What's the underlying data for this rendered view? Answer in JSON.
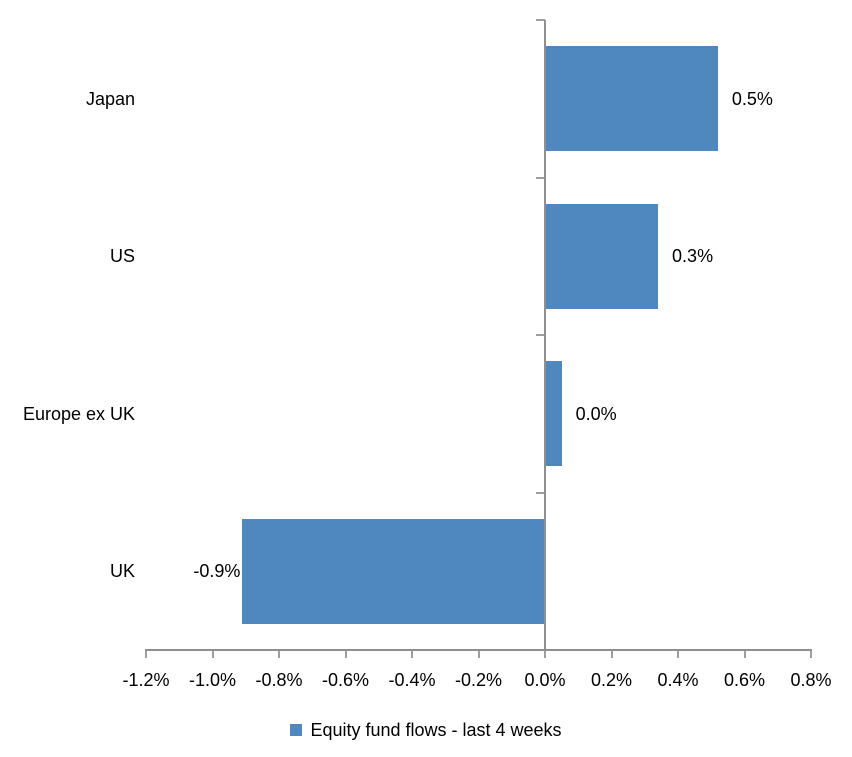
{
  "chart_data": {
    "type": "bar",
    "orientation": "horizontal",
    "title": "",
    "xlabel": "",
    "ylabel": "",
    "categories": [
      "Japan",
      "US",
      "Europe ex UK",
      "UK"
    ],
    "values": [
      0.5,
      0.3,
      0.0,
      -0.9
    ],
    "bar_values_precise": [
      0.52,
      0.34,
      0.05,
      -0.91
    ],
    "value_labels": [
      "0.5%",
      "0.3%",
      "0.0%",
      "-0.9%"
    ],
    "xlim": [
      -1.2,
      0.8
    ],
    "x_tick_step": 0.2,
    "x_tick_labels": [
      "-1.2%",
      "-1.0%",
      "-0.8%",
      "-0.6%",
      "-0.4%",
      "-0.2%",
      "0.0%",
      "0.2%",
      "0.4%",
      "0.6%",
      "0.8%"
    ],
    "grid": "off",
    "legend_position": "bottom-center",
    "legend": [
      {
        "label": "Equity fund flows - last 4 weeks",
        "swatch_color": "#4E88BE"
      }
    ],
    "bar_color": "#4E88BE",
    "axis_color": "#8F8F8F",
    "tick_color": "#9E9E9E",
    "text_color": "#000000"
  }
}
